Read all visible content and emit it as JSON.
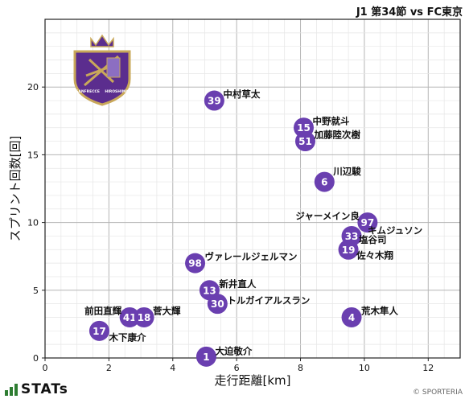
{
  "header": {
    "match": "J1 第34節 vs FC東京"
  },
  "footer": {
    "brand": "STATs",
    "copyright": "© SPORTERIA"
  },
  "crest": {
    "top_text": "SANFRECCE",
    "bottom_text": "HIROSHIMA",
    "primary_color": "#5b2d8e",
    "accent_color": "#c9a85a"
  },
  "colors": {
    "marker": "#6a3fb0",
    "marker_text": "#ffffff",
    "grid": "#cccccc"
  },
  "chart_data": {
    "type": "scatter",
    "xlabel": "走行距離[km]",
    "ylabel": "スプリント回数[回]",
    "xlim": [
      0,
      13
    ],
    "ylim": [
      0,
      25
    ],
    "xticks": [
      0,
      2,
      4,
      6,
      8,
      10,
      12
    ],
    "yticks": [
      0,
      5,
      10,
      15,
      20
    ],
    "grid": true,
    "points": [
      {
        "number": "39",
        "name": "中村草太",
        "x": 5.3,
        "y": 19
      },
      {
        "number": "15",
        "name": "中野就斗",
        "x": 8.1,
        "y": 17
      },
      {
        "number": "51",
        "name": "加藤陸次樹",
        "x": 8.15,
        "y": 16
      },
      {
        "number": "6",
        "name": "川辺駿",
        "x": 8.75,
        "y": 13
      },
      {
        "number": "97",
        "name": "ジャーメイン良",
        "x": 10.1,
        "y": 10
      },
      {
        "number": "33",
        "name": "キムジュソン",
        "x": 9.6,
        "y": 9
      },
      {
        "number": "19",
        "name": "佐々木翔",
        "x": 9.5,
        "y": 8
      },
      {
        "number": "4",
        "name": "塩谷司",
        "x": 9.6,
        "y": 8.5
      },
      {
        "number": "98",
        "name": "ヴァレールジェルマン",
        "x": 4.7,
        "y": 7
      },
      {
        "number": "13",
        "name": "新井直人",
        "x": 5.15,
        "y": 5
      },
      {
        "number": "30",
        "name": "トルガイアルスラン",
        "x": 5.4,
        "y": 4
      },
      {
        "number": "4",
        "name": "荒木隼人",
        "x": 9.6,
        "y": 3
      },
      {
        "number": "41",
        "name": "前田直輝",
        "x": 2.65,
        "y": 3
      },
      {
        "number": "18",
        "name": "菅大輝",
        "x": 3.1,
        "y": 3
      },
      {
        "number": "17",
        "name": "木下康介",
        "x": 1.7,
        "y": 2
      },
      {
        "number": "1",
        "name": "大迫敬介",
        "x": 5.05,
        "y": 0.1
      }
    ]
  }
}
